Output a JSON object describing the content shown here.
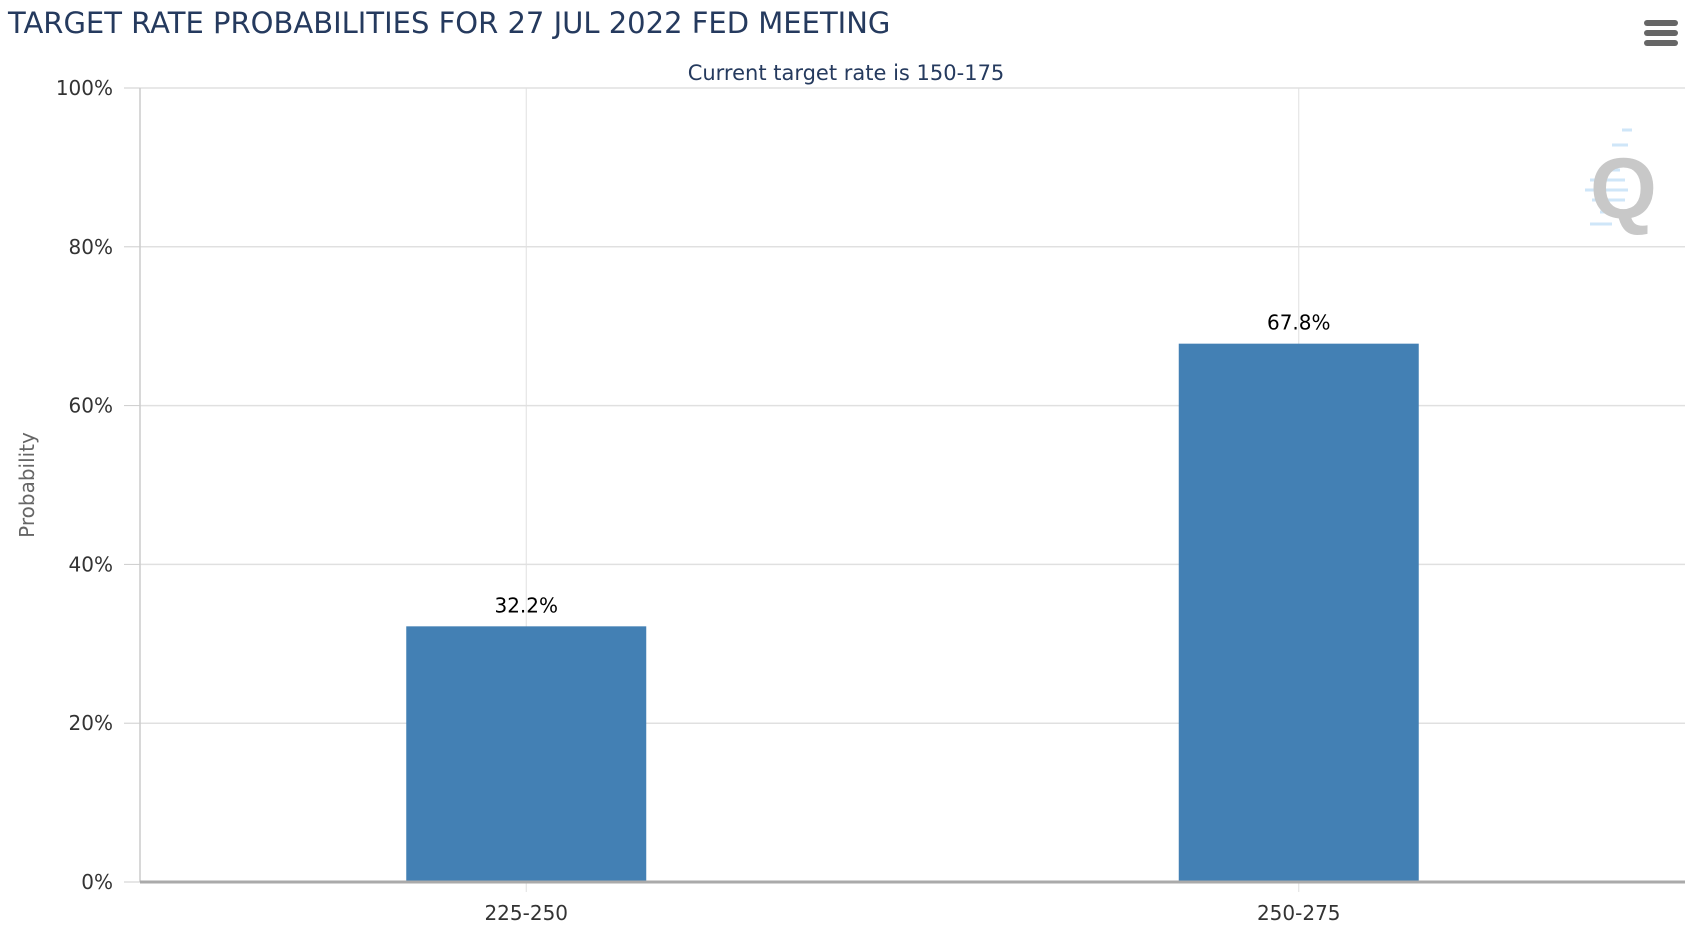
{
  "chart_data": {
    "type": "bar",
    "title": "TARGET RATE PROBABILITIES FOR 27 JUL 2022 FED MEETING",
    "subtitle": "Current target rate is 150-175",
    "xlabel": "",
    "ylabel": "Probability",
    "categories": [
      "225-250",
      "250-275"
    ],
    "values": [
      32.2,
      67.8
    ],
    "data_labels": [
      "32.2%",
      "67.8%"
    ],
    "ylim": [
      0,
      100
    ],
    "yticks": [
      "0%",
      "20%",
      "40%",
      "60%",
      "80%",
      "100%"
    ],
    "grid": true,
    "legend": "none",
    "colors": {
      "bar": "#4380b4",
      "title": "#253a5e",
      "grid": "#e0e0e0"
    }
  },
  "toolbar": {
    "menu_icon": "hamburger-menu-icon"
  },
  "watermark": {
    "logo_text": "Q"
  }
}
